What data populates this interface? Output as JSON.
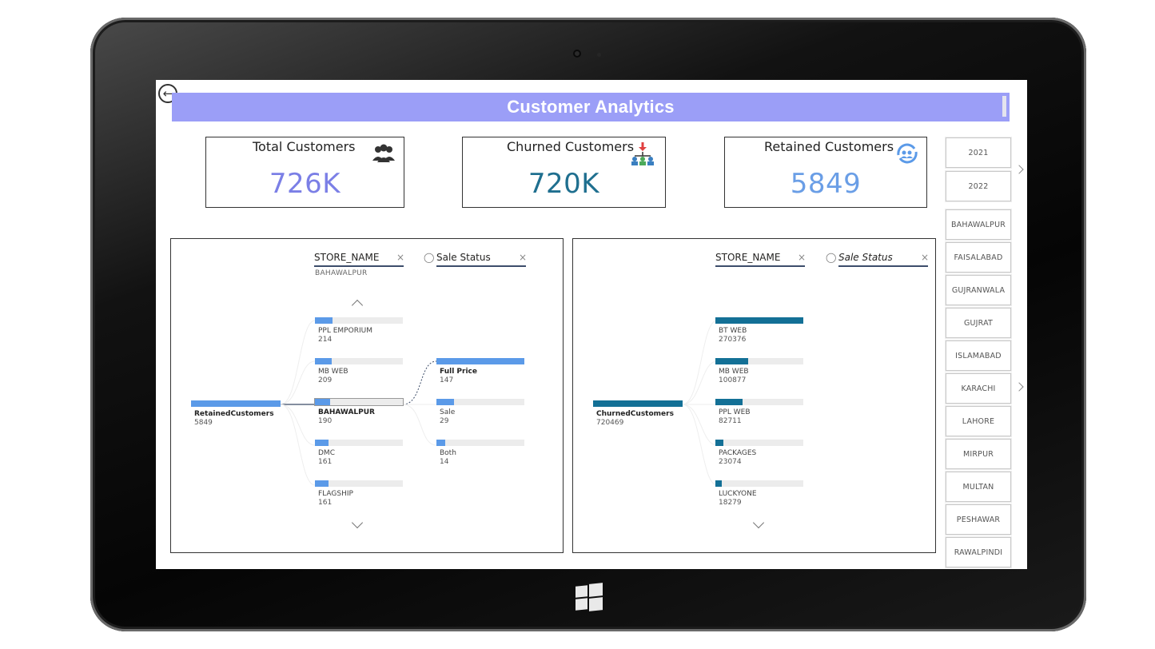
{
  "title": "Customer Analytics",
  "colors": {
    "title_bar": "#9b9ef7",
    "retained_bar": "#5b9ae8",
    "churned_bar": "#137096",
    "total_value": "#7b7fe6",
    "churned_value": "#1f6f8f",
    "retained_value": "#6a9ee6"
  },
  "kpis": {
    "total": {
      "label": "Total Customers",
      "value": "726K",
      "icon": "people-group-icon"
    },
    "churned": {
      "label": "Churned Customers",
      "value": "720K",
      "icon": "network-down-icon"
    },
    "retained": {
      "label": "Retained Customers",
      "value": "5849",
      "icon": "retention-cycle-icon"
    }
  },
  "left_tree": {
    "level1_header": "STORE_NAME",
    "level1_filter": "BAHAWALPUR",
    "level2_header": "Sale Status",
    "root": {
      "label": "RetainedCustomers",
      "value": "5849",
      "fraction": 1.0
    },
    "level1": [
      {
        "label": "PPL EMPORIUM",
        "value": "214",
        "fraction": 0.2
      },
      {
        "label": "MB WEB",
        "value": "209",
        "fraction": 0.19
      },
      {
        "label": "BAHAWALPUR",
        "value": "190",
        "fraction": 0.17
      },
      {
        "label": "DMC",
        "value": "161",
        "fraction": 0.15
      },
      {
        "label": "FLAGSHIP",
        "value": "161",
        "fraction": 0.15
      }
    ],
    "level2": [
      {
        "label": "Full Price",
        "value": "147",
        "fraction": 1.0
      },
      {
        "label": "Sale",
        "value": "29",
        "fraction": 0.2
      },
      {
        "label": "Both",
        "value": "14",
        "fraction": 0.1
      }
    ]
  },
  "right_tree": {
    "level1_header": "STORE_NAME",
    "level2_header": "Sale Status",
    "root": {
      "label": "ChurnedCustomers",
      "value": "720469",
      "fraction": 1.0
    },
    "level1": [
      {
        "label": "BT WEB",
        "value": "270376",
        "fraction": 1.0
      },
      {
        "label": "MB WEB",
        "value": "100877",
        "fraction": 0.37
      },
      {
        "label": "PPL WEB",
        "value": "82711",
        "fraction": 0.31
      },
      {
        "label": "PACKAGES",
        "value": "23074",
        "fraction": 0.09
      },
      {
        "label": "LUCKYONE",
        "value": "18279",
        "fraction": 0.07
      }
    ]
  },
  "slicers": {
    "years": [
      "2021",
      "2022"
    ],
    "cities": [
      "BAHAWALPUR",
      "FAISALABAD",
      "GUJRANWALA",
      "GUJRAT",
      "ISLAMABAD",
      "KARACHI",
      "LAHORE",
      "MIRPUR",
      "MULTAN",
      "PESHAWAR",
      "RAWALPINDI"
    ]
  }
}
